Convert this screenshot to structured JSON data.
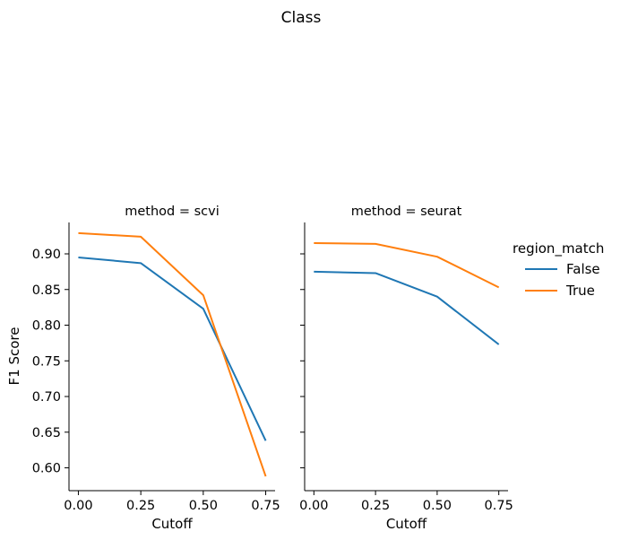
{
  "chart_data": {
    "type": "line",
    "title": "Class",
    "legend": {
      "title": "region_match",
      "placement": "right",
      "entries": [
        "False",
        "True"
      ]
    },
    "colors": {
      "False": "#1f77b4",
      "True": "#ff7f0e"
    },
    "ylabel": "F1 Score",
    "ylim": [
      0.568,
      0.944
    ],
    "yticks": [
      0.6,
      0.65,
      0.7,
      0.75,
      0.8,
      0.85,
      0.9
    ],
    "ytick_labels": [
      "0.60",
      "0.65",
      "0.70",
      "0.75",
      "0.80",
      "0.85",
      "0.90"
    ],
    "xlim": [
      -0.0375,
      0.7875
    ],
    "xticks": [
      0.0,
      0.25,
      0.5,
      0.75
    ],
    "xtick_labels": [
      "0.00",
      "0.25",
      "0.50",
      "0.75"
    ],
    "panels": [
      {
        "title": "method = scvi",
        "xlabel": "Cutoff",
        "x": [
          0.0,
          0.25,
          0.5,
          0.75
        ],
        "series": [
          {
            "name": "False",
            "values": [
              0.895,
              0.887,
              0.823,
              0.638
            ]
          },
          {
            "name": "True",
            "values": [
              0.929,
              0.924,
              0.842,
              0.588
            ]
          }
        ]
      },
      {
        "title": "method = seurat",
        "xlabel": "Cutoff",
        "x": [
          0.0,
          0.25,
          0.5,
          0.75
        ],
        "series": [
          {
            "name": "False",
            "values": [
              0.875,
              0.873,
              0.84,
              0.773
            ]
          },
          {
            "name": "True",
            "values": [
              0.915,
              0.914,
              0.896,
              0.853
            ]
          }
        ]
      }
    ]
  }
}
